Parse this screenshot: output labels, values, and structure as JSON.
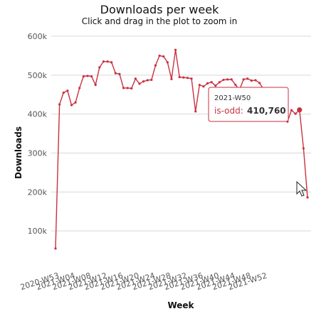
{
  "chart_data": {
    "type": "line",
    "title": "Downloads per week",
    "subtitle": "Click and drag in the plot to zoom in",
    "xlabel": "Week",
    "ylabel": "Downloads",
    "ylim": [
      0,
      600000
    ],
    "y_ticks": [
      "100k",
      "200k",
      "300k",
      "400k",
      "500k",
      "600k"
    ],
    "x_tick_labels": [
      "2020-W53",
      "2021-W04",
      "2021-W08",
      "2021-W12",
      "2021-W16",
      "2021-W20",
      "2021-W24",
      "2021-W28",
      "2021-W32",
      "2021-W36",
      "2021-W40",
      "2021-W44",
      "2021-W48",
      "2021-W52"
    ],
    "grid": true,
    "series": [
      {
        "color": "#c8313f",
        "values": [
          55000,
          425000,
          455000,
          460000,
          423000,
          430000,
          467000,
          497000,
          498000,
          497000,
          475000,
          520000,
          535000,
          535000,
          533000,
          505000,
          503000,
          467000,
          467000,
          466000,
          491000,
          478000,
          484000,
          487000,
          488000,
          525000,
          550000,
          548000,
          533000,
          490000,
          565000,
          495000,
          494000,
          493000,
          491000,
          407000,
          475000,
          471000,
          479000,
          482000,
          473000,
          482000,
          488000,
          489000,
          489000,
          475000,
          462000,
          489000,
          491000,
          486000,
          487000,
          480000,
          464000,
          450000,
          453000,
          450000,
          430000,
          435000,
          381000,
          410000,
          401000,
          410760,
          312000,
          186000
        ]
      }
    ],
    "tooltip": {
      "title": "2021-W50",
      "label": "is-odd:",
      "value": "410,760"
    }
  }
}
